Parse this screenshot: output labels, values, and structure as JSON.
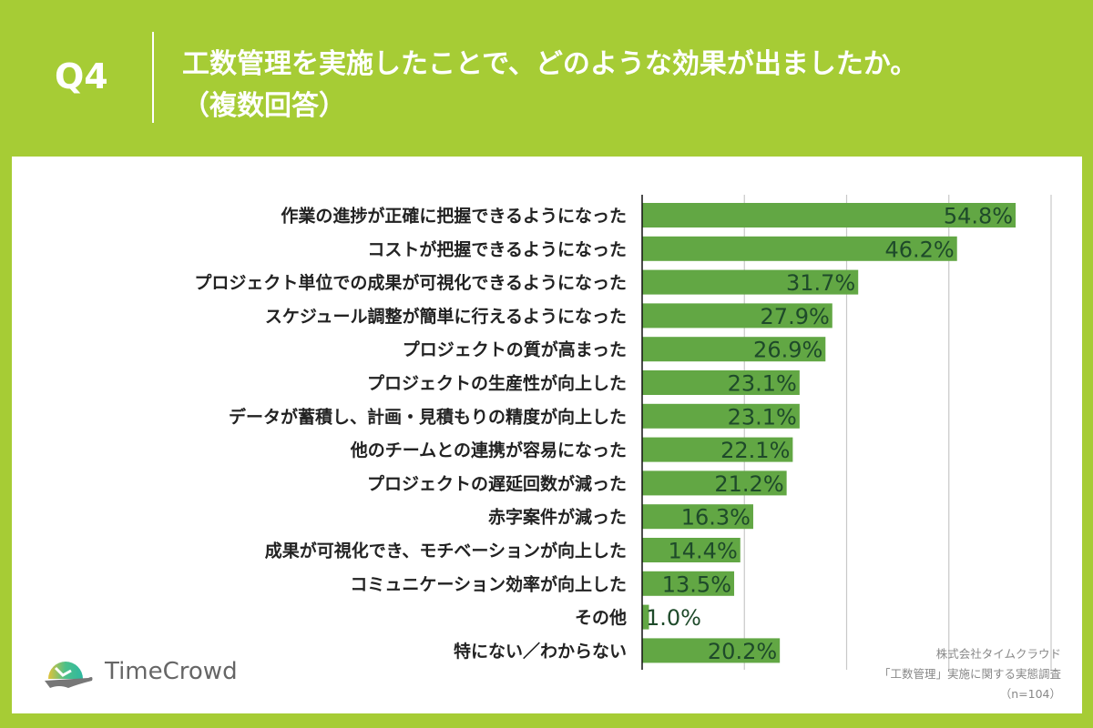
{
  "header": {
    "q": "Q4",
    "title_line1": "工数管理を実施したことで、どのような効果が出ましたか。",
    "title_line2": "（複数回答）"
  },
  "chart_data": {
    "type": "bar",
    "orientation": "horizontal",
    "xlim": [
      0,
      60
    ],
    "gridlines": [
      15,
      30,
      45,
      60
    ],
    "bar_color": "#62a744",
    "label_color": "#1e4a2a",
    "categories": [
      "作業の進捗が正確に把握できるようになった",
      "コストが把握できるようになった",
      "プロジェクト単位での成果が可視化できるようになった",
      "スケジュール調整が簡単に行えるようになった",
      "プロジェクトの質が高まった",
      "プロジェクトの生産性が向上した",
      "データが蓄積し、計画・見積もりの精度が向上した",
      "他のチームとの連携が容易になった",
      "プロジェクトの遅延回数が減った",
      "赤字案件が減った",
      "成果が可視化でき、モチベーションが向上した",
      "コミュニケーション効率が向上した",
      "その他",
      "特にない／わからない"
    ],
    "values": [
      54.8,
      46.2,
      31.7,
      27.9,
      26.9,
      23.1,
      23.1,
      22.1,
      21.2,
      16.3,
      14.4,
      13.5,
      1.0,
      20.2
    ],
    "value_labels": [
      "54.8%",
      "46.2%",
      "31.7%",
      "27.9%",
      "26.9%",
      "23.1%",
      "23.1%",
      "22.1%",
      "21.2%",
      "16.3%",
      "14.4%",
      "13.5%",
      "1.0%",
      "20.2%"
    ]
  },
  "logo": {
    "text": "TimeCrowd"
  },
  "source": {
    "line1": "株式会社タイムクラウド",
    "line2": "「工数管理」実施に関する実態調査",
    "line3": "（n=104）"
  }
}
